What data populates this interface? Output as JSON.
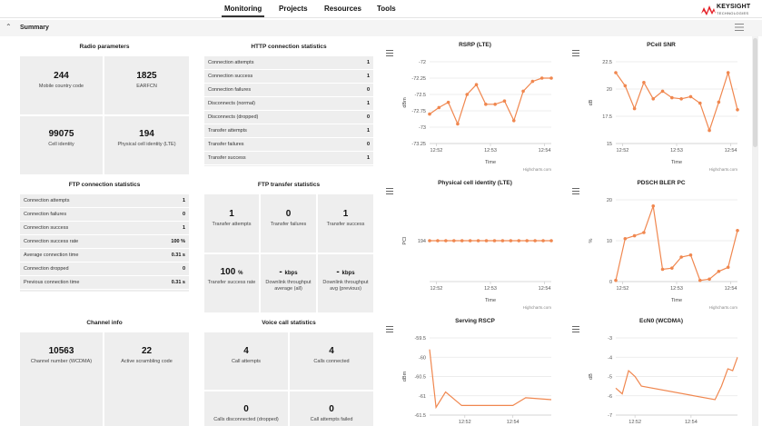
{
  "nav": {
    "tabs": [
      "Monitoring",
      "Projects",
      "Resources",
      "Tools"
    ],
    "active": "Monitoring",
    "logo_text": "KEYSIGHT",
    "logo_sub": "TECHNOLOGIES"
  },
  "summary": {
    "title": "Summary"
  },
  "radio": {
    "title": "Radio parameters",
    "tiles": [
      {
        "value": "244",
        "label": "Mobile country code"
      },
      {
        "value": "1825",
        "label": "EARFCN"
      },
      {
        "value": "99075",
        "label": "Cell identity"
      },
      {
        "value": "194",
        "label": "Physical cell identity (LTE)"
      }
    ]
  },
  "http": {
    "title": "HTTP connection statistics",
    "rows": [
      {
        "k": "Connection attempts",
        "v": "1"
      },
      {
        "k": "Connection success",
        "v": "1"
      },
      {
        "k": "Connection failures",
        "v": "0"
      },
      {
        "k": "Disconnects (normal)",
        "v": "1"
      },
      {
        "k": "Disconnects (dropped)",
        "v": "0"
      },
      {
        "k": "Transfer attempts",
        "v": "1"
      },
      {
        "k": "Transfer failures",
        "v": "0"
      },
      {
        "k": "Transfer success",
        "v": "1"
      }
    ]
  },
  "ftpconn": {
    "title": "FTP connection statistics",
    "rows": [
      {
        "k": "Connection attempts",
        "v": "1"
      },
      {
        "k": "Connection failures",
        "v": "0"
      },
      {
        "k": "Connection success",
        "v": "1"
      },
      {
        "k": "Connection success rate",
        "v": "100 %"
      },
      {
        "k": "Average connection time",
        "v": "0.31 s"
      },
      {
        "k": "Connection dropped",
        "v": "0"
      },
      {
        "k": "Previous connection time",
        "v": "0.31 s"
      }
    ]
  },
  "ftptrans": {
    "title": "FTP transfer statistics",
    "tiles": [
      {
        "value": "1",
        "unit": "",
        "label": "Transfer attempts"
      },
      {
        "value": "0",
        "unit": "",
        "label": "Transfer failures"
      },
      {
        "value": "1",
        "unit": "",
        "label": "Transfer success"
      },
      {
        "value": "100",
        "unit": "%",
        "label": "Transfer success rate"
      },
      {
        "value": "-",
        "unit": "kbps",
        "label": "Downlink throughput average (all)"
      },
      {
        "value": "-",
        "unit": "kbps",
        "label": "Downlink throughput avg (previous)"
      }
    ]
  },
  "channel": {
    "title": "Channel info",
    "tiles": [
      {
        "value": "10563",
        "label": "Channel number (WCDMA)"
      },
      {
        "value": "22",
        "label": "Active scrambling code"
      }
    ]
  },
  "voice": {
    "title": "Voice call statistics",
    "tiles": [
      {
        "value": "4",
        "label": "Call attempts"
      },
      {
        "value": "4",
        "label": "Calls connected"
      },
      {
        "value": "0",
        "label": "Calls disconnected (dropped)"
      },
      {
        "value": "0",
        "label": "Call attempts failed"
      }
    ]
  },
  "colors": {
    "series": "#f0874f",
    "accent": "#e41e26"
  },
  "credit": "Highcharts.com",
  "chart_data": [
    {
      "type": "line",
      "title": "RSRP (LTE)",
      "ylabel": "dBm",
      "xlabel": "Time",
      "ylim": [
        -73.25,
        -72
      ],
      "yticks": [
        -72,
        -72.25,
        -72.5,
        -72.75,
        -73,
        -73.25
      ],
      "xticks": [
        "12:52",
        "12:53",
        "12:54"
      ],
      "xtick_pos": [
        0.5,
        4.5,
        8.5
      ],
      "xlim": [
        0,
        9
      ],
      "series": [
        {
          "values": [
            -72.8,
            -72.7,
            -72.62,
            -72.95,
            -72.5,
            -72.35,
            -72.65,
            -72.65,
            -72.6,
            -72.9,
            -72.45,
            -72.3,
            -72.25,
            -72.25
          ]
        }
      ]
    },
    {
      "type": "line",
      "title": "PCell SNR",
      "ylabel": "dB",
      "xlabel": "Time",
      "ylim": [
        15,
        22.5
      ],
      "yticks": [
        22.5,
        20,
        17.5,
        15
      ],
      "xticks": [
        "12:52",
        "12:53",
        "12:54"
      ],
      "xtick_pos": [
        0.5,
        4.5,
        8.5
      ],
      "xlim": [
        0,
        9
      ],
      "series": [
        {
          "values": [
            21.5,
            20.3,
            18.2,
            20.6,
            19.1,
            19.8,
            19.2,
            19.1,
            19.3,
            18.7,
            16.2,
            18.8,
            21.5,
            18.1
          ]
        }
      ]
    },
    {
      "type": "line",
      "title": "Physical cell identity (LTE)",
      "ylabel": "PCI",
      "xlabel": "Time",
      "ylim": [
        0,
        1
      ],
      "yticks": [
        194
      ],
      "ytick_frac": [
        0.5
      ],
      "xticks": [
        "12:52",
        "12:53",
        "12:54"
      ],
      "xtick_pos": [
        0.5,
        4.5,
        8.5
      ],
      "xlim": [
        0,
        9
      ],
      "series": [
        {
          "values": [
            194,
            194,
            194,
            194,
            194,
            194,
            194,
            194,
            194,
            194,
            194,
            194,
            194,
            194,
            194,
            194
          ]
        }
      ]
    },
    {
      "type": "line",
      "title": "PDSCH BLER PC",
      "ylabel": "%",
      "xlabel": "Time",
      "ylim": [
        0,
        20
      ],
      "yticks": [
        20,
        10,
        0
      ],
      "xticks": [
        "12:52",
        "12:53",
        "12:54"
      ],
      "xtick_pos": [
        0.5,
        4.5,
        8.5
      ],
      "xlim": [
        0,
        9
      ],
      "series": [
        {
          "values": [
            0.3,
            10.5,
            11.2,
            12,
            18.5,
            3,
            3.3,
            6,
            6.5,
            0.3,
            0.6,
            2.5,
            3.5,
            12.5
          ]
        }
      ]
    },
    {
      "type": "line",
      "title": "Serving RSCP",
      "ylabel": "dBm",
      "xlabel": "Time",
      "ylim": [
        -61.5,
        -59.5
      ],
      "yticks": [
        -59.5,
        -60,
        -60.5,
        -61,
        -61.5
      ],
      "xticks": [
        "12:52",
        "12:54"
      ],
      "xtick_pos": [
        2.2,
        5.2
      ],
      "xlim": [
        0,
        7.6
      ],
      "points": [
        [
          0,
          -59.8
        ],
        [
          0.4,
          -61.3
        ],
        [
          1,
          -60.9
        ],
        [
          2,
          -61.25
        ],
        [
          5.2,
          -61.25
        ],
        [
          6,
          -61.05
        ],
        [
          7.6,
          -61.1
        ]
      ]
    },
    {
      "type": "line",
      "title": "EcN0 (WCDMA)",
      "ylabel": "dB",
      "xlabel": "Time",
      "ylim": [
        -7,
        -3
      ],
      "yticks": [
        -3,
        -4,
        -5,
        -6,
        -7
      ],
      "xticks": [
        "12:52",
        "12:54"
      ],
      "xtick_pos": [
        1.2,
        4.7
      ],
      "xlim": [
        0,
        7.6
      ],
      "points": [
        [
          0,
          -5.6
        ],
        [
          0.4,
          -5.9
        ],
        [
          0.8,
          -4.7
        ],
        [
          1.2,
          -5
        ],
        [
          1.6,
          -5.5
        ],
        [
          6.2,
          -6.2
        ],
        [
          6.6,
          -5.5
        ],
        [
          7,
          -4.6
        ],
        [
          7.3,
          -4.7
        ],
        [
          7.6,
          -4
        ]
      ]
    }
  ]
}
